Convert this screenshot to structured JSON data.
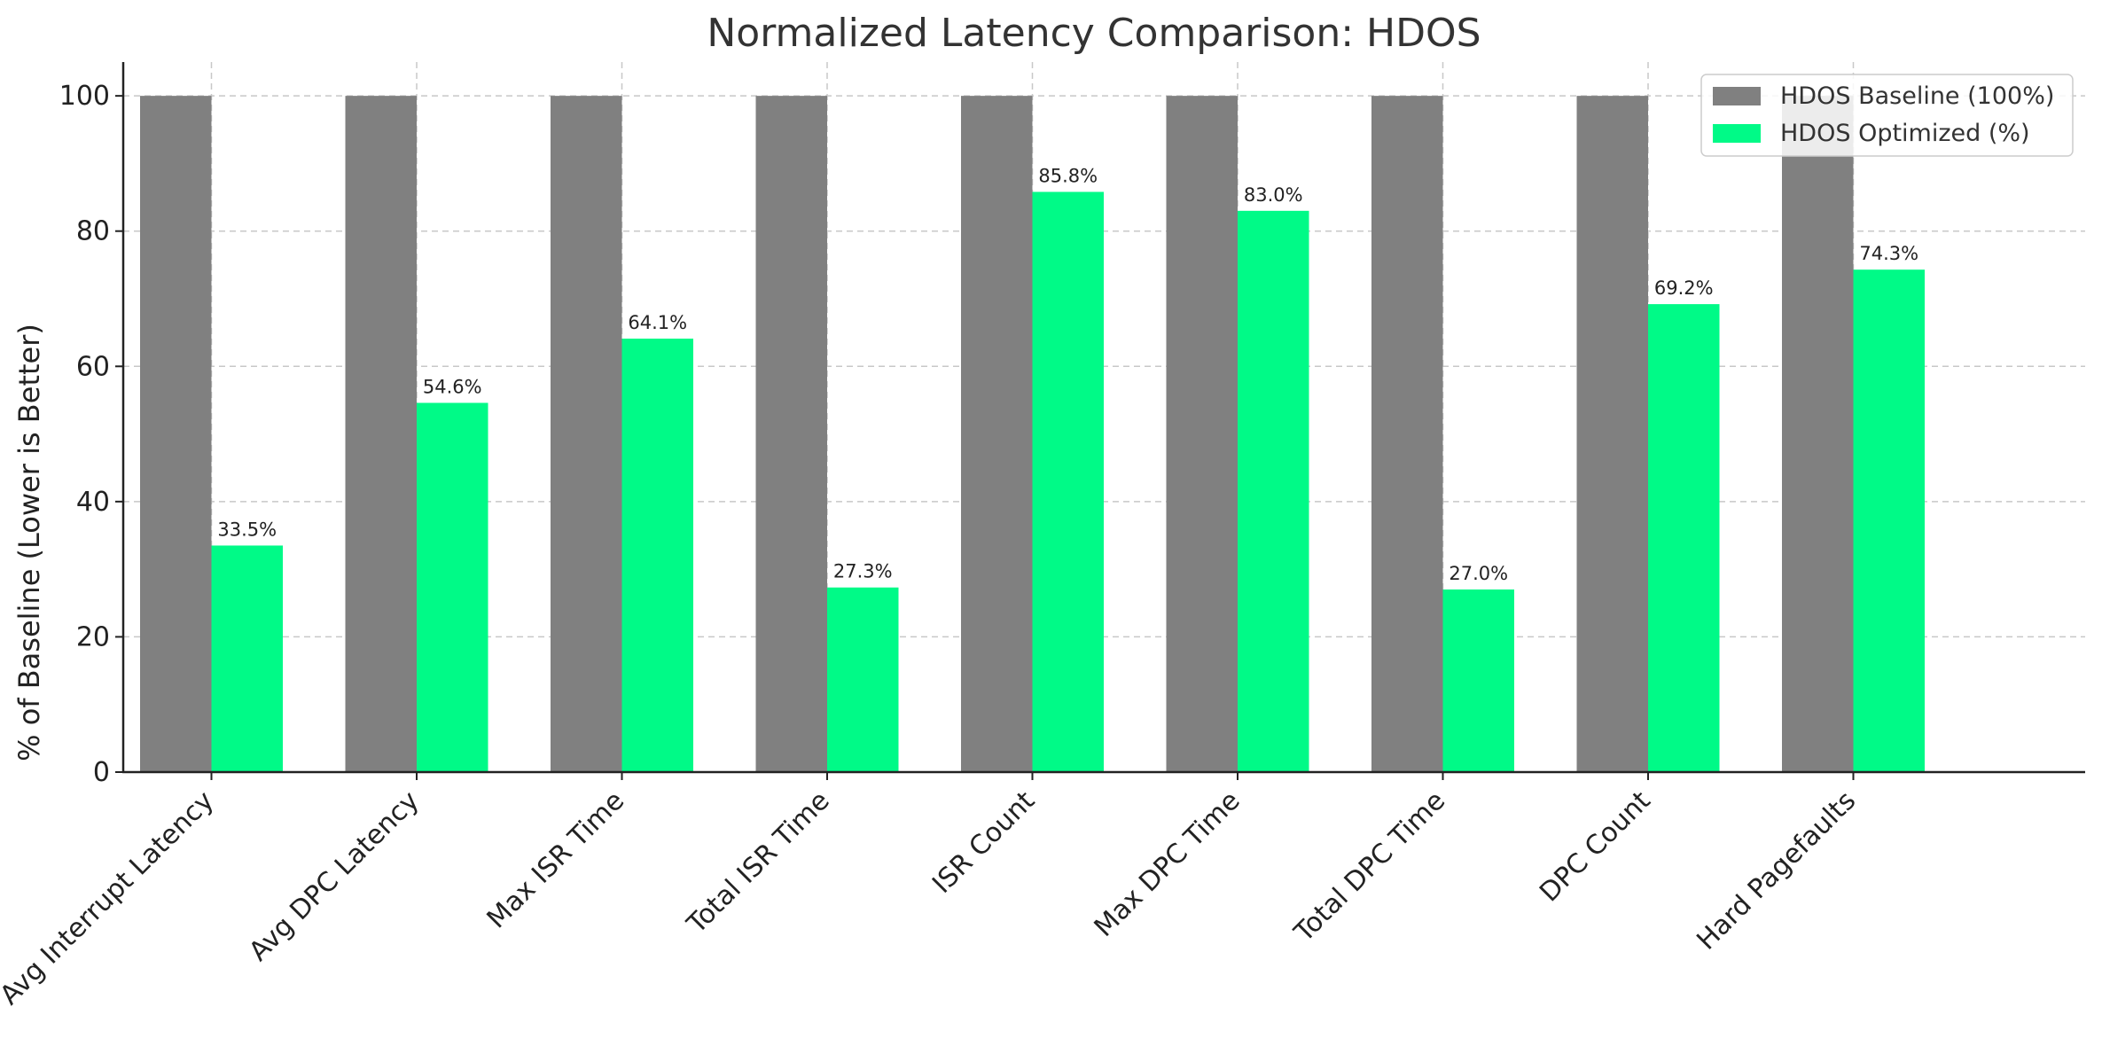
{
  "chart_data": {
    "type": "bar",
    "title": "Normalized Latency Comparison: HDOS",
    "xlabel": "",
    "ylabel": "% of Baseline (Lower is Better)",
    "ylim": [
      0,
      105
    ],
    "yticks": [
      0,
      20,
      40,
      60,
      80,
      100
    ],
    "grid": true,
    "legend_position": "top-right",
    "categories": [
      "Avg Interrupt Latency",
      "Avg DPC Latency",
      "Max ISR Time",
      "Total ISR Time",
      "ISR Count",
      "Max DPC Time",
      "Total DPC Time",
      "DPC Count",
      "Hard Pagefaults"
    ],
    "series": [
      {
        "name": "HDOS Baseline (100%)",
        "color": "#808080",
        "values": [
          100,
          100,
          100,
          100,
          100,
          100,
          100,
          100,
          100
        ],
        "data_labels": []
      },
      {
        "name": "HDOS Optimized (%)",
        "color": "#00fa87",
        "values": [
          33.5,
          54.6,
          64.1,
          27.3,
          85.8,
          83.0,
          27.0,
          69.2,
          74.3
        ],
        "data_labels": [
          "33.5%",
          "54.6%",
          "64.1%",
          "27.3%",
          "85.8%",
          "83.0%",
          "27.0%",
          "69.2%",
          "74.3%"
        ]
      }
    ]
  }
}
